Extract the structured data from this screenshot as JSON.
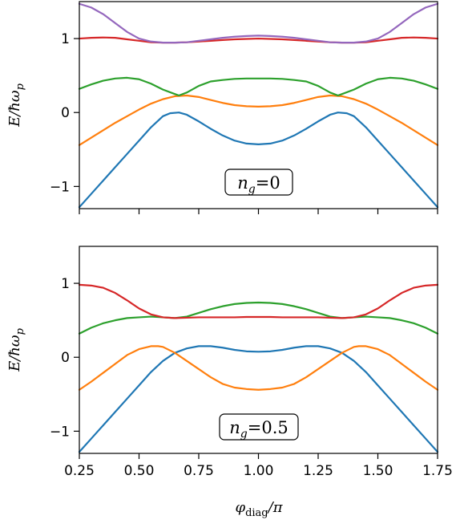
{
  "colors": {
    "blue": "#1f77b4",
    "orange": "#ff7f0e",
    "green": "#2ca02c",
    "red": "#d62728",
    "purple": "#9467bd"
  },
  "chart_data": [
    {
      "type": "line",
      "ylabel": "E/ħω",
      "ylabel_sub": "p",
      "xlim": [
        0.25,
        1.75
      ],
      "ylim": [
        -1.3,
        1.5
      ],
      "yticks": [
        -1,
        0,
        1
      ],
      "ytick_labels": [
        "−1",
        "0",
        "1"
      ],
      "xticks": [
        0.25,
        0.5,
        0.75,
        1.0,
        1.25,
        1.5,
        1.75
      ],
      "show_xtick_labels": false,
      "annotation": {
        "var": "n",
        "sub": "g",
        "value": "=0"
      },
      "series": [
        {
          "color": "#1f77b4",
          "x": [
            0.25,
            0.3,
            0.35,
            0.4,
            0.45,
            0.5,
            0.55,
            0.6,
            0.63,
            0.667,
            0.7,
            0.75,
            0.8,
            0.85,
            0.9,
            0.95,
            1.0,
            1.05,
            1.1,
            1.15,
            1.2,
            1.25,
            1.3,
            1.333,
            1.37,
            1.4,
            1.45,
            1.5,
            1.55,
            1.6,
            1.65,
            1.7,
            1.75
          ],
          "y": [
            -1.28,
            -1.1,
            -0.92,
            -0.74,
            -0.56,
            -0.38,
            -0.2,
            -0.05,
            -0.01,
            0.0,
            -0.03,
            -0.12,
            -0.22,
            -0.31,
            -0.38,
            -0.42,
            -0.43,
            -0.42,
            -0.38,
            -0.31,
            -0.22,
            -0.12,
            -0.03,
            0.0,
            -0.01,
            -0.05,
            -0.2,
            -0.38,
            -0.56,
            -0.74,
            -0.92,
            -1.1,
            -1.28
          ]
        },
        {
          "color": "#ff7f0e",
          "x": [
            0.25,
            0.3,
            0.35,
            0.4,
            0.45,
            0.5,
            0.55,
            0.6,
            0.65,
            0.7,
            0.75,
            0.8,
            0.85,
            0.9,
            0.95,
            1.0,
            1.05,
            1.1,
            1.15,
            1.2,
            1.25,
            1.3,
            1.35,
            1.4,
            1.45,
            1.5,
            1.55,
            1.6,
            1.65,
            1.7,
            1.75
          ],
          "y": [
            -0.44,
            -0.34,
            -0.24,
            -0.14,
            -0.05,
            0.04,
            0.12,
            0.18,
            0.22,
            0.23,
            0.21,
            0.17,
            0.13,
            0.1,
            0.085,
            0.08,
            0.085,
            0.1,
            0.13,
            0.17,
            0.21,
            0.23,
            0.22,
            0.18,
            0.12,
            0.04,
            -0.05,
            -0.14,
            -0.24,
            -0.34,
            -0.44
          ]
        },
        {
          "color": "#2ca02c",
          "x": [
            0.25,
            0.3,
            0.35,
            0.4,
            0.45,
            0.5,
            0.55,
            0.6,
            0.65,
            0.667,
            0.7,
            0.75,
            0.8,
            0.85,
            0.9,
            0.95,
            1.0,
            1.05,
            1.1,
            1.15,
            1.2,
            1.25,
            1.3,
            1.333,
            1.35,
            1.4,
            1.45,
            1.5,
            1.55,
            1.6,
            1.65,
            1.7,
            1.75
          ],
          "y": [
            0.32,
            0.38,
            0.43,
            0.46,
            0.47,
            0.45,
            0.39,
            0.31,
            0.25,
            0.23,
            0.27,
            0.36,
            0.42,
            0.44,
            0.455,
            0.46,
            0.46,
            0.46,
            0.455,
            0.44,
            0.42,
            0.36,
            0.27,
            0.23,
            0.25,
            0.31,
            0.39,
            0.45,
            0.47,
            0.46,
            0.43,
            0.38,
            0.32
          ]
        },
        {
          "color": "#d62728",
          "x": [
            0.25,
            0.3,
            0.35,
            0.4,
            0.45,
            0.5,
            0.55,
            0.6,
            0.65,
            0.7,
            0.75,
            0.8,
            0.85,
            0.9,
            0.95,
            1.0,
            1.05,
            1.1,
            1.15,
            1.2,
            1.25,
            1.3,
            1.35,
            1.4,
            1.45,
            1.5,
            1.55,
            1.6,
            1.65,
            1.7,
            1.75
          ],
          "y": [
            1.0,
            1.01,
            1.015,
            1.01,
            0.99,
            0.97,
            0.95,
            0.945,
            0.945,
            0.95,
            0.96,
            0.97,
            0.98,
            0.99,
            0.995,
            1.0,
            0.995,
            0.99,
            0.98,
            0.97,
            0.96,
            0.95,
            0.945,
            0.945,
            0.95,
            0.97,
            0.99,
            1.01,
            1.015,
            1.01,
            1.0
          ]
        },
        {
          "color": "#9467bd",
          "x": [
            0.25,
            0.3,
            0.35,
            0.4,
            0.45,
            0.5,
            0.55,
            0.6,
            0.65,
            0.7,
            0.75,
            0.8,
            0.85,
            0.9,
            0.95,
            1.0,
            1.05,
            1.1,
            1.15,
            1.2,
            1.25,
            1.3,
            1.35,
            1.4,
            1.45,
            1.5,
            1.55,
            1.6,
            1.65,
            1.7,
            1.75
          ],
          "y": [
            1.47,
            1.42,
            1.33,
            1.21,
            1.09,
            1.0,
            0.96,
            0.945,
            0.945,
            0.95,
            0.97,
            0.99,
            1.01,
            1.025,
            1.035,
            1.04,
            1.035,
            1.025,
            1.01,
            0.99,
            0.97,
            0.95,
            0.945,
            0.945,
            0.96,
            1.0,
            1.09,
            1.21,
            1.33,
            1.42,
            1.47
          ]
        }
      ]
    },
    {
      "type": "line",
      "xlabel": "φ",
      "xlabel_sub": "diag",
      "xlabel_tail": "/π",
      "ylabel": "E/ħω",
      "ylabel_sub": "p",
      "xlim": [
        0.25,
        1.75
      ],
      "ylim": [
        -1.3,
        1.5
      ],
      "yticks": [
        -1,
        0,
        1
      ],
      "ytick_labels": [
        "−1",
        "0",
        "1"
      ],
      "xticks": [
        0.25,
        0.5,
        0.75,
        1.0,
        1.25,
        1.5,
        1.75
      ],
      "xtick_labels": [
        "0.25",
        "0.50",
        "0.75",
        "1.00",
        "1.25",
        "1.50",
        "1.75"
      ],
      "show_xtick_labels": true,
      "annotation": {
        "var": "n",
        "sub": "g",
        "value": "=0.5"
      },
      "series": [
        {
          "color": "#1f77b4",
          "x": [
            0.25,
            0.3,
            0.35,
            0.4,
            0.45,
            0.5,
            0.55,
            0.6,
            0.65,
            0.7,
            0.75,
            0.8,
            0.85,
            0.9,
            0.95,
            1.0,
            1.05,
            1.1,
            1.15,
            1.2,
            1.25,
            1.3,
            1.35,
            1.4,
            1.45,
            1.5,
            1.55,
            1.6,
            1.65,
            1.7,
            1.75
          ],
          "y": [
            -1.28,
            -1.1,
            -0.92,
            -0.74,
            -0.56,
            -0.38,
            -0.2,
            -0.05,
            0.06,
            0.12,
            0.15,
            0.15,
            0.13,
            0.1,
            0.08,
            0.075,
            0.08,
            0.1,
            0.13,
            0.15,
            0.15,
            0.12,
            0.06,
            -0.05,
            -0.2,
            -0.38,
            -0.56,
            -0.74,
            -0.92,
            -1.1,
            -1.28
          ]
        },
        {
          "color": "#ff7f0e",
          "x": [
            0.25,
            0.3,
            0.35,
            0.4,
            0.45,
            0.5,
            0.55,
            0.58,
            0.6,
            0.65,
            0.7,
            0.75,
            0.8,
            0.85,
            0.9,
            0.95,
            1.0,
            1.05,
            1.1,
            1.15,
            1.2,
            1.25,
            1.3,
            1.35,
            1.4,
            1.42,
            1.45,
            1.5,
            1.55,
            1.6,
            1.65,
            1.7,
            1.75
          ],
          "y": [
            -0.44,
            -0.33,
            -0.21,
            -0.09,
            0.03,
            0.11,
            0.15,
            0.15,
            0.14,
            0.06,
            -0.05,
            -0.16,
            -0.27,
            -0.36,
            -0.41,
            -0.43,
            -0.44,
            -0.43,
            -0.41,
            -0.36,
            -0.27,
            -0.16,
            -0.05,
            0.06,
            0.14,
            0.15,
            0.15,
            0.11,
            0.03,
            -0.09,
            -0.21,
            -0.33,
            -0.44
          ]
        },
        {
          "color": "#2ca02c",
          "x": [
            0.25,
            0.3,
            0.35,
            0.4,
            0.45,
            0.5,
            0.55,
            0.6,
            0.65,
            0.7,
            0.75,
            0.8,
            0.85,
            0.9,
            0.95,
            1.0,
            1.05,
            1.1,
            1.15,
            1.2,
            1.25,
            1.3,
            1.35,
            1.4,
            1.45,
            1.5,
            1.55,
            1.6,
            1.65,
            1.7,
            1.75
          ],
          "y": [
            0.32,
            0.4,
            0.46,
            0.5,
            0.53,
            0.54,
            0.55,
            0.54,
            0.53,
            0.55,
            0.6,
            0.65,
            0.69,
            0.72,
            0.735,
            0.74,
            0.735,
            0.72,
            0.69,
            0.65,
            0.6,
            0.55,
            0.53,
            0.54,
            0.55,
            0.54,
            0.53,
            0.5,
            0.46,
            0.4,
            0.32
          ]
        },
        {
          "color": "#d62728",
          "x": [
            0.25,
            0.3,
            0.35,
            0.4,
            0.45,
            0.5,
            0.55,
            0.6,
            0.65,
            0.7,
            0.75,
            0.8,
            0.85,
            0.9,
            0.95,
            1.0,
            1.05,
            1.1,
            1.15,
            1.2,
            1.25,
            1.3,
            1.35,
            1.4,
            1.45,
            1.5,
            1.55,
            1.6,
            1.65,
            1.7,
            1.75
          ],
          "y": [
            0.98,
            0.97,
            0.94,
            0.87,
            0.77,
            0.66,
            0.58,
            0.54,
            0.53,
            0.535,
            0.54,
            0.54,
            0.54,
            0.54,
            0.545,
            0.545,
            0.545,
            0.54,
            0.54,
            0.54,
            0.54,
            0.535,
            0.53,
            0.54,
            0.58,
            0.66,
            0.77,
            0.87,
            0.94,
            0.97,
            0.98
          ]
        }
      ]
    }
  ]
}
